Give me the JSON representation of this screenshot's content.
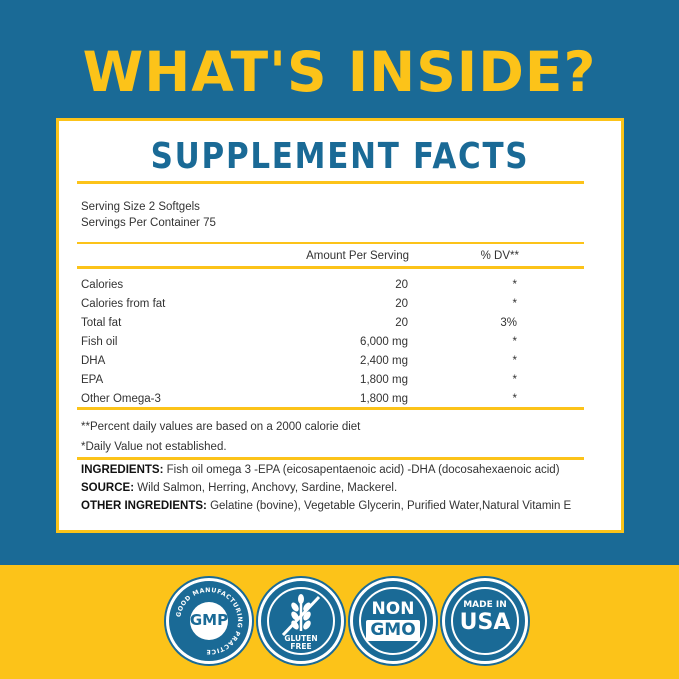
{
  "headline": "WHAT'S INSIDE?",
  "facts": {
    "title": "SUPPLEMENT FACTS",
    "serving_size": "Serving Size 2 Softgels",
    "servings_per_container": "Servings Per Container 75",
    "header_amount": "Amount Per Serving",
    "header_dv": "% DV**",
    "rows": [
      {
        "label": "Calories",
        "amount": "20",
        "dv": "*"
      },
      {
        "label": "Calories from fat",
        "amount": "20",
        "dv": "*"
      },
      {
        "label": "Total fat",
        "amount": "20",
        "dv": "3%"
      },
      {
        "label": "Fish oil",
        "amount": "6,000 mg",
        "dv": "*"
      },
      {
        "label": "DHA",
        "amount": "2,400 mg",
        "dv": "*"
      },
      {
        "label": "EPA",
        "amount": "1,800 mg",
        "dv": "*"
      },
      {
        "label": "Other Omega-3",
        "amount": "1,800 mg",
        "dv": "*"
      }
    ],
    "note_1": "**Percent daily values are based on a 2000 calorie diet",
    "note_2": "*Daily Value not established.",
    "ingredients_label": "INGREDIENTS:",
    "ingredients_text": " Fish oil omega 3 -EPA (eicosapentaenoic acid) -DHA (docosahexaenoic acid)",
    "source_label": "SOURCE:",
    "source_text": " Wild Salmon, Herring, Anchovy, Sardine, Mackerel.",
    "other_label": "OTHER INGREDIENTS:",
    "other_text": " Gelatine (bovine), Vegetable Glycerin, Purified Water,Natural Vitamin E"
  },
  "badges": {
    "gmp_main": "GMP",
    "gmp_ring": "GOOD MANUFACTURING PRACTICE",
    "gluten_line1": "GLUTEN",
    "gluten_line2": "FREE",
    "nongmo_line1": "NON",
    "nongmo_line2": "GMO",
    "usa_line1": "MADE IN",
    "usa_line2": "USA"
  },
  "colors": {
    "blue": "#1a6a96",
    "yellow": "#fcc319",
    "white": "#ffffff"
  }
}
